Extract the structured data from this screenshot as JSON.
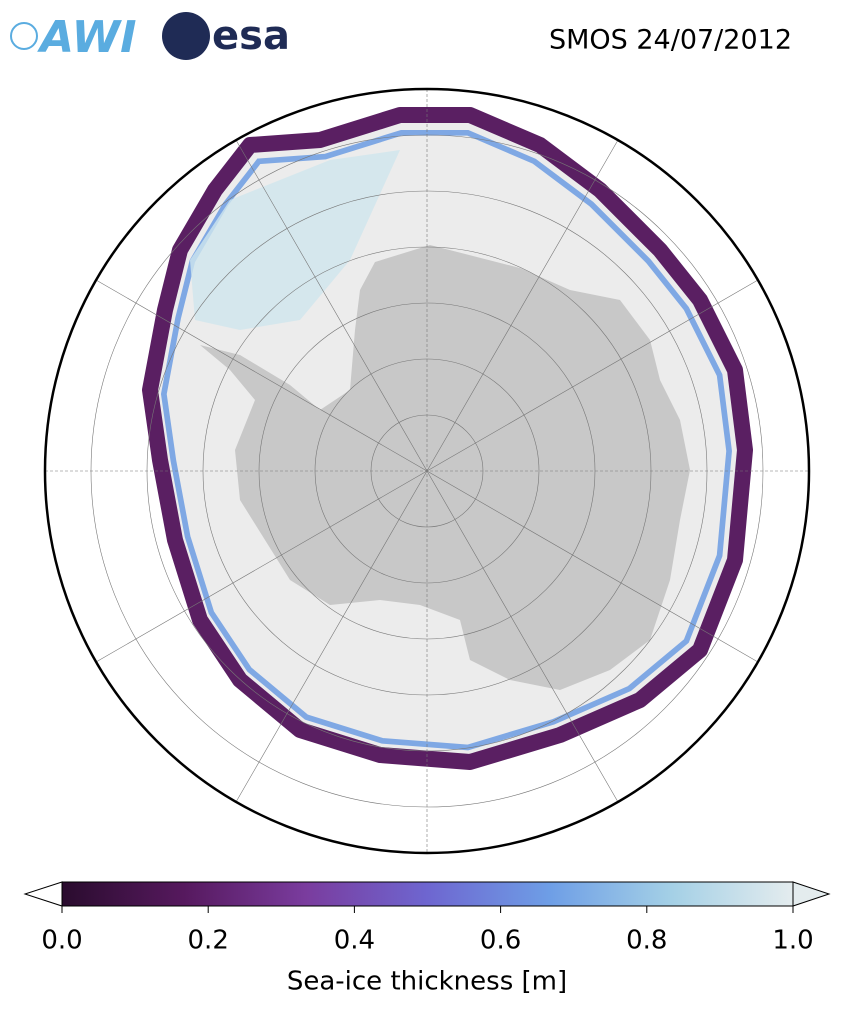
{
  "header": {
    "logos": [
      "AWI",
      "esa"
    ],
    "title": "SMOS 24/07/2012"
  },
  "colorbar": {
    "label": "Sea-ice thickness [m]",
    "lim": [
      0,
      1
    ],
    "ticks": [
      {
        "value": 0,
        "label": "0.0"
      },
      0.2,
      0.4,
      0.6,
      0.8,
      {
        "value": 1,
        "label": "1.0"
      }
    ],
    "colors": [
      "#2a0c2e",
      "#56195e",
      "#7a3c9e",
      "#6e66d0",
      "#6e9ee6",
      "#a4d0e6",
      "#e4ecee"
    ]
  }
}
